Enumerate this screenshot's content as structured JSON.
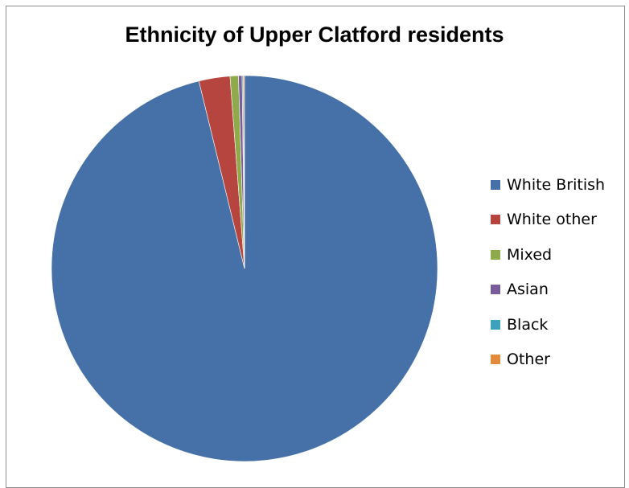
{
  "chart_data": {
    "type": "pie",
    "title": "Ethnicity of Upper Clatford residents",
    "categories": [
      "White British",
      "White other",
      "Mixed",
      "Asian",
      "Black",
      "Other"
    ],
    "values": [
      96.2,
      2.6,
      0.7,
      0.3,
      0.1,
      0.1
    ],
    "colors": [
      "#4571a8",
      "#b6443f",
      "#8faa4a",
      "#7a5b9b",
      "#3ea2be",
      "#e48b3b"
    ],
    "legend_position": "right",
    "start_angle_deg": 0,
    "direction": "clockwise"
  }
}
